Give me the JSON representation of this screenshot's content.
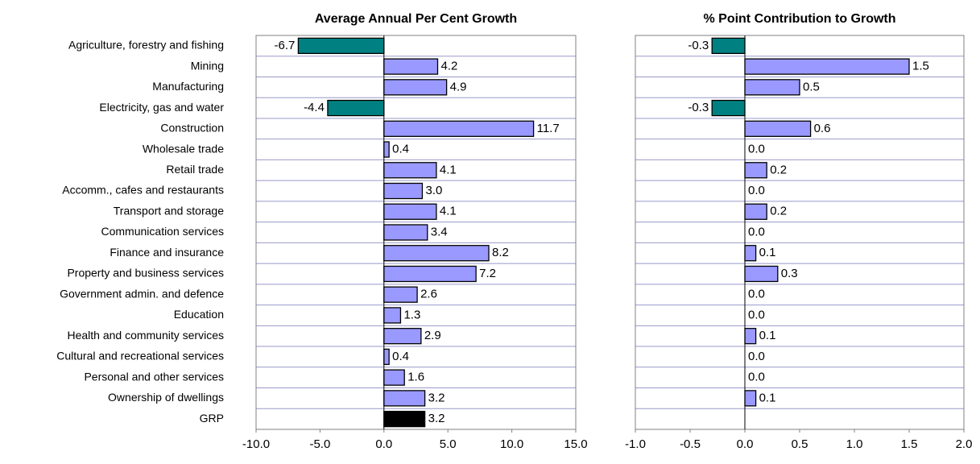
{
  "chart_data": [
    {
      "type": "bar",
      "orientation": "horizontal",
      "title": "Average Annual Per Cent Growth",
      "categories": [
        "Agriculture, forestry and fishing",
        "Mining",
        "Manufacturing",
        "Electricity, gas and water",
        "Construction",
        "Wholesale trade",
        "Retail trade",
        "Accomm., cafes and restaurants",
        "Transport and storage",
        "Communication services",
        "Finance and insurance",
        "Property and business services",
        "Government admin. and defence",
        "Education",
        "Health and community services",
        "Cultural and recreational services",
        "Personal and other services",
        "Ownership of dwellings",
        "GRP"
      ],
      "values": [
        -6.7,
        4.2,
        4.9,
        -4.4,
        11.7,
        0.4,
        4.1,
        3.0,
        4.1,
        3.4,
        8.2,
        7.2,
        2.6,
        1.3,
        2.9,
        0.4,
        1.6,
        3.2,
        3.2
      ],
      "value_labels": [
        "-6.7",
        "4.2",
        "4.9",
        "-4.4",
        "11.7",
        "0.4",
        "4.1",
        "3.0",
        "4.1",
        "3.4",
        "8.2",
        "7.2",
        "2.6",
        "1.3",
        "2.9",
        "0.4",
        "1.6",
        "3.2",
        "3.2"
      ],
      "colors": [
        "#008080",
        "#9999ff",
        "#9999ff",
        "#008080",
        "#9999ff",
        "#9999ff",
        "#9999ff",
        "#9999ff",
        "#9999ff",
        "#9999ff",
        "#9999ff",
        "#9999ff",
        "#9999ff",
        "#9999ff",
        "#9999ff",
        "#9999ff",
        "#9999ff",
        "#9999ff",
        "#000000"
      ],
      "xlim": [
        -10,
        15
      ],
      "xticks": [
        {
          "value": -10,
          "label": "-10.0"
        },
        {
          "value": -5,
          "label": "-5.0"
        },
        {
          "value": 0,
          "label": "0.0"
        },
        {
          "value": 5,
          "label": "5.0"
        },
        {
          "value": 10,
          "label": "10.0"
        },
        {
          "value": 15,
          "label": "15.0"
        }
      ],
      "grid": true
    },
    {
      "type": "bar",
      "orientation": "horizontal",
      "title": "% Point Contribution to Growth",
      "values": [
        -0.3,
        1.5,
        0.5,
        -0.3,
        0.6,
        0.0,
        0.2,
        0.0,
        0.2,
        0.0,
        0.1,
        0.3,
        0.0,
        0.0,
        0.1,
        0.0,
        0.0,
        0.1,
        null
      ],
      "value_labels": [
        "-0.3",
        "1.5",
        "0.5",
        "-0.3",
        "0.6",
        "0.0",
        "0.2",
        "0.0",
        "0.2",
        "0.0",
        "0.1",
        "0.3",
        "0.0",
        "0.0",
        "0.1",
        "0.0",
        "0.0",
        "0.1",
        null
      ],
      "colors": [
        "#008080",
        "#9999ff",
        "#9999ff",
        "#008080",
        "#9999ff",
        "#9999ff",
        "#9999ff",
        "#9999ff",
        "#9999ff",
        "#9999ff",
        "#9999ff",
        "#9999ff",
        "#9999ff",
        "#9999ff",
        "#9999ff",
        "#9999ff",
        "#9999ff",
        "#9999ff",
        null
      ],
      "xlim": [
        -1,
        2
      ],
      "xticks": [
        {
          "value": -1,
          "label": "-1.0"
        },
        {
          "value": -0.5,
          "label": "-0.5"
        },
        {
          "value": 0,
          "label": "0.0"
        },
        {
          "value": 0.5,
          "label": "0.5"
        },
        {
          "value": 1,
          "label": "1.0"
        },
        {
          "value": 1.5,
          "label": "1.5"
        },
        {
          "value": 2,
          "label": "2.0"
        }
      ],
      "grid": true
    }
  ]
}
